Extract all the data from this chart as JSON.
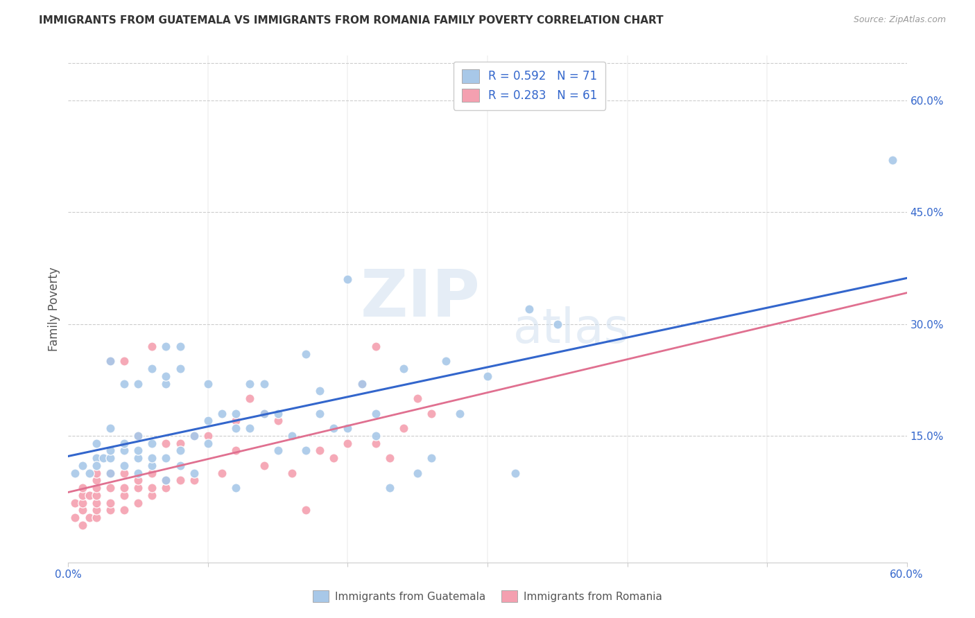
{
  "title": "IMMIGRANTS FROM GUATEMALA VS IMMIGRANTS FROM ROMANIA FAMILY POVERTY CORRELATION CHART",
  "source": "Source: ZipAtlas.com",
  "ylabel": "Family Poverty",
  "xmin": 0.0,
  "xmax": 0.6,
  "ymin": -0.02,
  "ymax": 0.66,
  "ytick_labels_right": [
    "15.0%",
    "30.0%",
    "45.0%",
    "60.0%"
  ],
  "ytick_vals_right": [
    0.15,
    0.3,
    0.45,
    0.6
  ],
  "color_guatemala": "#a8c8e8",
  "color_romania": "#f4a0b0",
  "trendline_guatemala_color": "#3366cc",
  "trendline_romania_color": "#e07090",
  "trendline_romania_dashed_color": "#ccaacc",
  "watermark_zip": "ZIP",
  "watermark_atlas": "atlas",
  "legend_text_color": "#3366cc",
  "scatter_guatemala_x": [
    0.005,
    0.01,
    0.015,
    0.02,
    0.02,
    0.02,
    0.025,
    0.03,
    0.03,
    0.03,
    0.03,
    0.03,
    0.04,
    0.04,
    0.04,
    0.04,
    0.05,
    0.05,
    0.05,
    0.05,
    0.05,
    0.06,
    0.06,
    0.06,
    0.06,
    0.07,
    0.07,
    0.07,
    0.07,
    0.07,
    0.08,
    0.08,
    0.08,
    0.08,
    0.09,
    0.09,
    0.1,
    0.1,
    0.1,
    0.11,
    0.12,
    0.12,
    0.12,
    0.13,
    0.13,
    0.14,
    0.14,
    0.15,
    0.15,
    0.16,
    0.17,
    0.17,
    0.18,
    0.18,
    0.19,
    0.2,
    0.2,
    0.21,
    0.22,
    0.22,
    0.23,
    0.24,
    0.25,
    0.26,
    0.27,
    0.28,
    0.3,
    0.32,
    0.33,
    0.35,
    0.59
  ],
  "scatter_guatemala_y": [
    0.1,
    0.11,
    0.1,
    0.12,
    0.14,
    0.11,
    0.12,
    0.1,
    0.12,
    0.13,
    0.16,
    0.25,
    0.11,
    0.13,
    0.14,
    0.22,
    0.1,
    0.12,
    0.13,
    0.15,
    0.22,
    0.11,
    0.12,
    0.14,
    0.24,
    0.09,
    0.12,
    0.22,
    0.23,
    0.27,
    0.11,
    0.13,
    0.24,
    0.27,
    0.1,
    0.15,
    0.14,
    0.17,
    0.22,
    0.18,
    0.08,
    0.16,
    0.18,
    0.16,
    0.22,
    0.18,
    0.22,
    0.13,
    0.18,
    0.15,
    0.13,
    0.26,
    0.18,
    0.21,
    0.16,
    0.16,
    0.36,
    0.22,
    0.15,
    0.18,
    0.08,
    0.24,
    0.1,
    0.12,
    0.25,
    0.18,
    0.23,
    0.1,
    0.32,
    0.3,
    0.52
  ],
  "scatter_romania_x": [
    0.005,
    0.005,
    0.01,
    0.01,
    0.01,
    0.01,
    0.01,
    0.015,
    0.015,
    0.02,
    0.02,
    0.02,
    0.02,
    0.02,
    0.02,
    0.02,
    0.03,
    0.03,
    0.03,
    0.03,
    0.03,
    0.04,
    0.04,
    0.04,
    0.04,
    0.04,
    0.05,
    0.05,
    0.05,
    0.05,
    0.06,
    0.06,
    0.06,
    0.06,
    0.07,
    0.07,
    0.07,
    0.08,
    0.08,
    0.09,
    0.09,
    0.1,
    0.11,
    0.12,
    0.12,
    0.13,
    0.14,
    0.14,
    0.15,
    0.16,
    0.17,
    0.18,
    0.19,
    0.2,
    0.21,
    0.22,
    0.23,
    0.24,
    0.25,
    0.26,
    0.22
  ],
  "scatter_romania_y": [
    0.04,
    0.06,
    0.03,
    0.05,
    0.06,
    0.07,
    0.08,
    0.04,
    0.07,
    0.04,
    0.05,
    0.06,
    0.07,
    0.08,
    0.09,
    0.1,
    0.05,
    0.06,
    0.08,
    0.1,
    0.25,
    0.05,
    0.07,
    0.08,
    0.1,
    0.25,
    0.06,
    0.08,
    0.09,
    0.15,
    0.07,
    0.08,
    0.1,
    0.27,
    0.08,
    0.09,
    0.14,
    0.09,
    0.14,
    0.09,
    0.15,
    0.15,
    0.1,
    0.13,
    0.17,
    0.2,
    0.11,
    0.18,
    0.17,
    0.1,
    0.05,
    0.13,
    0.12,
    0.14,
    0.22,
    0.14,
    0.12,
    0.16,
    0.2,
    0.18,
    0.27
  ],
  "legend_bottom_labels": [
    "Immigrants from Guatemala",
    "Immigrants from Romania"
  ]
}
